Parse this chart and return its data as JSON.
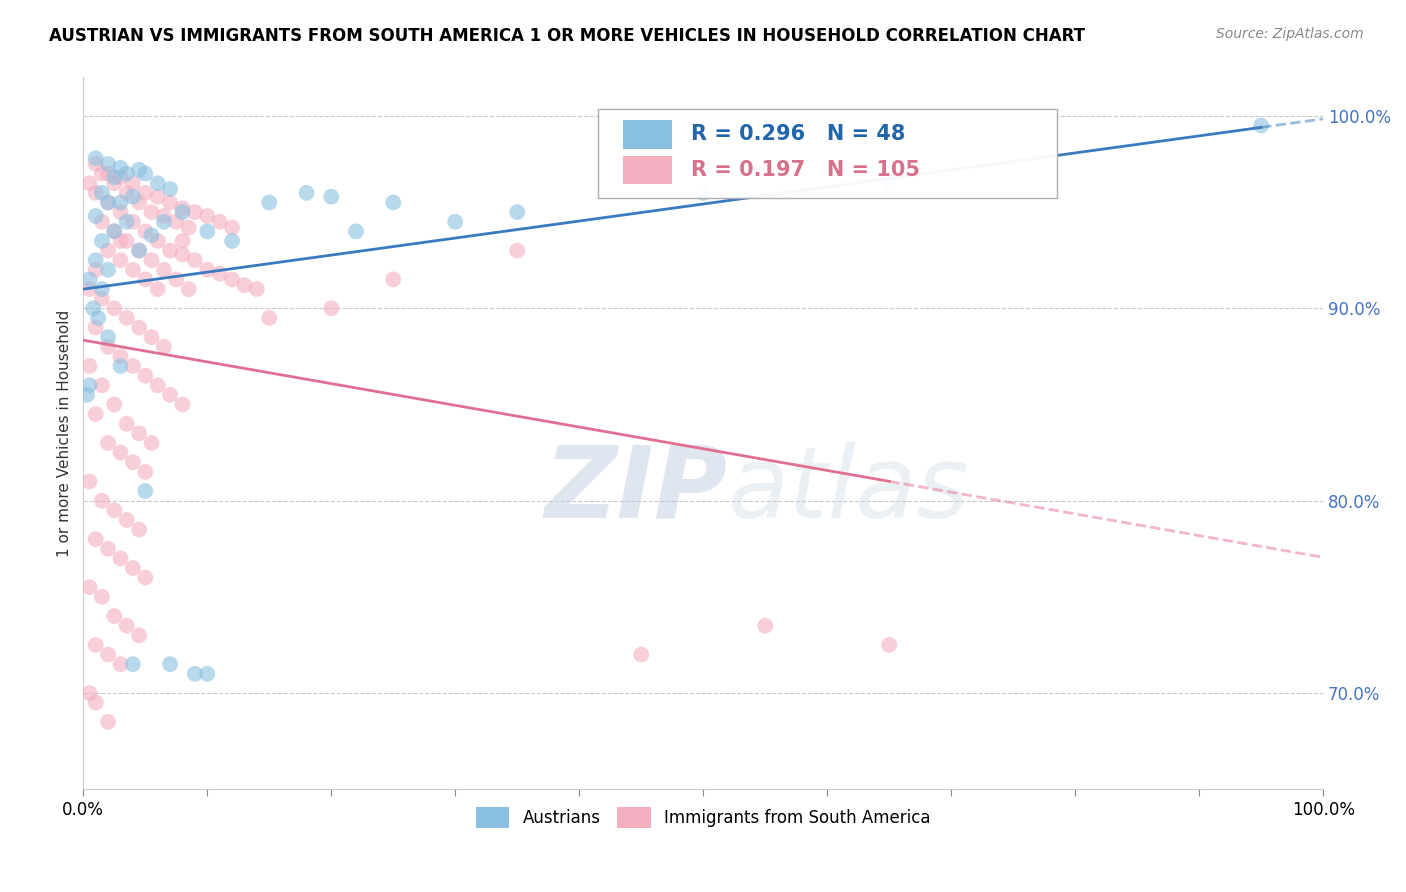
{
  "title": "AUSTRIAN VS IMMIGRANTS FROM SOUTH AMERICA 1 OR MORE VEHICLES IN HOUSEHOLD CORRELATION CHART",
  "source": "Source: ZipAtlas.com",
  "ylabel": "1 or more Vehicles in Household",
  "legend_label_blue": "Austrians",
  "legend_label_pink": "Immigrants from South America",
  "R_blue": 0.296,
  "N_blue": 48,
  "R_pink": 0.197,
  "N_pink": 105,
  "blue_color": "#89bfdf",
  "pink_color": "#f4afc0",
  "blue_line_color": "#3a7bbf",
  "pink_line_color": "#e07090",
  "blue_scatter": [
    [
      1.0,
      97.8
    ],
    [
      2.0,
      97.5
    ],
    [
      3.0,
      97.3
    ],
    [
      3.5,
      97.0
    ],
    [
      4.5,
      97.2
    ],
    [
      5.0,
      97.0
    ],
    [
      2.5,
      96.8
    ],
    [
      6.0,
      96.5
    ],
    [
      7.0,
      96.2
    ],
    [
      1.5,
      96.0
    ],
    [
      4.0,
      95.8
    ],
    [
      2.0,
      95.5
    ],
    [
      3.0,
      95.5
    ],
    [
      8.0,
      95.0
    ],
    [
      1.0,
      94.8
    ],
    [
      3.5,
      94.5
    ],
    [
      6.5,
      94.5
    ],
    [
      10.0,
      94.0
    ],
    [
      2.5,
      94.0
    ],
    [
      5.5,
      93.8
    ],
    [
      1.5,
      93.5
    ],
    [
      4.5,
      93.0
    ],
    [
      1.0,
      92.5
    ],
    [
      2.0,
      92.0
    ],
    [
      0.5,
      91.5
    ],
    [
      1.5,
      91.0
    ],
    [
      0.8,
      90.0
    ],
    [
      1.2,
      89.5
    ],
    [
      2.0,
      88.5
    ],
    [
      3.0,
      87.0
    ],
    [
      5.0,
      80.5
    ],
    [
      7.0,
      71.5
    ],
    [
      10.0,
      71.0
    ],
    [
      15.0,
      95.5
    ],
    [
      18.0,
      96.0
    ],
    [
      20.0,
      95.8
    ],
    [
      25.0,
      95.5
    ],
    [
      30.0,
      94.5
    ],
    [
      35.0,
      95.0
    ],
    [
      50.0,
      96.0
    ],
    [
      65.0,
      96.5
    ],
    [
      95.0,
      99.5
    ],
    [
      0.5,
      86.0
    ],
    [
      0.3,
      85.5
    ],
    [
      4.0,
      71.5
    ],
    [
      9.0,
      71.0
    ],
    [
      12.0,
      93.5
    ],
    [
      22.0,
      94.0
    ]
  ],
  "pink_scatter": [
    [
      1.0,
      97.5
    ],
    [
      2.0,
      97.0
    ],
    [
      3.0,
      96.8
    ],
    [
      4.0,
      96.5
    ],
    [
      5.0,
      96.0
    ],
    [
      6.0,
      95.8
    ],
    [
      7.0,
      95.5
    ],
    [
      8.0,
      95.2
    ],
    [
      9.0,
      95.0
    ],
    [
      10.0,
      94.8
    ],
    [
      11.0,
      94.5
    ],
    [
      12.0,
      94.2
    ],
    [
      3.5,
      96.0
    ],
    [
      4.5,
      95.5
    ],
    [
      5.5,
      95.0
    ],
    [
      6.5,
      94.8
    ],
    [
      7.5,
      94.5
    ],
    [
      8.5,
      94.2
    ],
    [
      2.5,
      96.5
    ],
    [
      1.5,
      97.0
    ],
    [
      0.5,
      96.5
    ],
    [
      1.0,
      96.0
    ],
    [
      2.0,
      95.5
    ],
    [
      3.0,
      95.0
    ],
    [
      4.0,
      94.5
    ],
    [
      5.0,
      94.0
    ],
    [
      6.0,
      93.5
    ],
    [
      7.0,
      93.0
    ],
    [
      8.0,
      92.8
    ],
    [
      9.0,
      92.5
    ],
    [
      10.0,
      92.0
    ],
    [
      11.0,
      91.8
    ],
    [
      12.0,
      91.5
    ],
    [
      13.0,
      91.2
    ],
    [
      14.0,
      91.0
    ],
    [
      1.5,
      94.5
    ],
    [
      2.5,
      94.0
    ],
    [
      3.5,
      93.5
    ],
    [
      4.5,
      93.0
    ],
    [
      5.5,
      92.5
    ],
    [
      6.5,
      92.0
    ],
    [
      7.5,
      91.5
    ],
    [
      8.5,
      91.0
    ],
    [
      2.0,
      93.0
    ],
    [
      3.0,
      92.5
    ],
    [
      4.0,
      92.0
    ],
    [
      5.0,
      91.5
    ],
    [
      6.0,
      91.0
    ],
    [
      1.0,
      92.0
    ],
    [
      0.5,
      91.0
    ],
    [
      1.5,
      90.5
    ],
    [
      2.5,
      90.0
    ],
    [
      3.5,
      89.5
    ],
    [
      4.5,
      89.0
    ],
    [
      5.5,
      88.5
    ],
    [
      6.5,
      88.0
    ],
    [
      1.0,
      89.0
    ],
    [
      2.0,
      88.0
    ],
    [
      3.0,
      87.5
    ],
    [
      4.0,
      87.0
    ],
    [
      5.0,
      86.5
    ],
    [
      6.0,
      86.0
    ],
    [
      7.0,
      85.5
    ],
    [
      8.0,
      85.0
    ],
    [
      0.5,
      87.0
    ],
    [
      1.5,
      86.0
    ],
    [
      2.5,
      85.0
    ],
    [
      3.5,
      84.0
    ],
    [
      4.5,
      83.5
    ],
    [
      5.5,
      83.0
    ],
    [
      1.0,
      84.5
    ],
    [
      2.0,
      83.0
    ],
    [
      3.0,
      82.5
    ],
    [
      4.0,
      82.0
    ],
    [
      5.0,
      81.5
    ],
    [
      0.5,
      81.0
    ],
    [
      1.5,
      80.0
    ],
    [
      2.5,
      79.5
    ],
    [
      3.5,
      79.0
    ],
    [
      4.5,
      78.5
    ],
    [
      1.0,
      78.0
    ],
    [
      2.0,
      77.5
    ],
    [
      3.0,
      77.0
    ],
    [
      4.0,
      76.5
    ],
    [
      5.0,
      76.0
    ],
    [
      0.5,
      75.5
    ],
    [
      1.5,
      75.0
    ],
    [
      2.5,
      74.0
    ],
    [
      3.5,
      73.5
    ],
    [
      4.5,
      73.0
    ],
    [
      1.0,
      72.5
    ],
    [
      2.0,
      72.0
    ],
    [
      3.0,
      71.5
    ],
    [
      0.5,
      70.0
    ],
    [
      1.0,
      69.5
    ],
    [
      2.0,
      68.5
    ],
    [
      8.0,
      93.5
    ],
    [
      3.0,
      93.5
    ],
    [
      15.0,
      89.5
    ],
    [
      20.0,
      90.0
    ],
    [
      25.0,
      91.5
    ],
    [
      35.0,
      93.0
    ],
    [
      45.0,
      72.0
    ],
    [
      55.0,
      73.5
    ],
    [
      65.0,
      72.5
    ]
  ],
  "xlim": [
    0,
    100
  ],
  "ylim": [
    65,
    102
  ],
  "yticks": [
    70,
    80,
    90,
    100
  ],
  "watermark_zip": "ZIP",
  "watermark_atlas": "atlas",
  "background_color": "#ffffff"
}
